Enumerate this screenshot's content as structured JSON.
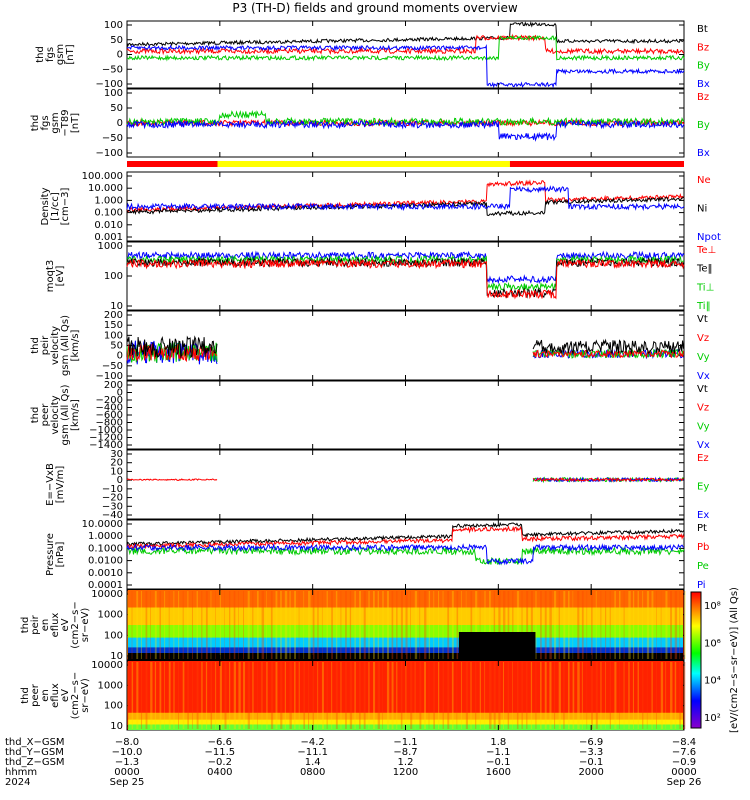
{
  "title": "P3 (TH-D) fields and ground moments overview",
  "colors": {
    "black": "#000000",
    "red": "#ff0000",
    "green": "#00cc00",
    "blue": "#0000ff",
    "yellow": "#ffff00"
  },
  "chart_data": {
    "type": "line",
    "x_range_hours": [
      0,
      24
    ],
    "panels": [
      {
        "id": "fgs",
        "ylabel": [
          "thd",
          "fgs",
          "gsm",
          "[nT]"
        ],
        "yrange": [
          -100,
          100
        ],
        "ticks": [
          "100",
          "50",
          "0",
          "−50",
          "−100"
        ],
        "legend": [
          {
            "name": "Bt",
            "color": "black"
          },
          {
            "name": "Bz",
            "color": "red"
          },
          {
            "name": "By",
            "color": "green"
          },
          {
            "name": "Bx",
            "color": "blue"
          }
        ]
      },
      {
        "id": "fgs_t89",
        "ylabel": [
          "thd",
          "fgs",
          "gsm",
          "−T89",
          "[nT]"
        ],
        "yrange": [
          -130,
          100
        ],
        "ticks": [
          "100",
          "50",
          "0",
          "−50",
          "−100"
        ],
        "legend": [
          {
            "name": "Bz",
            "color": "red"
          },
          {
            "name": "By",
            "color": "green"
          },
          {
            "name": "Bx",
            "color": "blue"
          }
        ]
      },
      {
        "id": "density",
        "ylabel": [
          "Density",
          "[1/cc]",
          "[cm−3]"
        ],
        "log": true,
        "ticks": [
          "100.000",
          "10.000",
          "1.000",
          "0.100",
          "0.010",
          "0.001"
        ],
        "legend": [
          {
            "name": "Ne",
            "color": "red"
          },
          {
            "name": "Ni",
            "color": "black"
          },
          {
            "name": "Npot",
            "color": "blue"
          }
        ]
      },
      {
        "id": "temp",
        "ylabel": [
          "moqt3",
          "[eV]"
        ],
        "log": true,
        "ticks": [
          "1000",
          "100",
          "10"
        ],
        "legend": [
          {
            "name": "Te⊥",
            "color": "red"
          },
          {
            "name": "Te‖",
            "color": "black"
          },
          {
            "name": "Ti⊥",
            "color": "green"
          },
          {
            "name": "Ti‖",
            "color": "green"
          }
        ]
      },
      {
        "id": "peir_vel",
        "ylabel": [
          "thd",
          "peir",
          "velocity",
          "gsm (All Qs)",
          "[km/s]"
        ],
        "yrange": [
          -130,
          200
        ],
        "ticks": [
          "200",
          "150",
          "100",
          "50",
          "0",
          "−50",
          "−100"
        ],
        "legend": [
          {
            "name": "Vt",
            "color": "black"
          },
          {
            "name": "Vz",
            "color": "red"
          },
          {
            "name": "Vy",
            "color": "green"
          },
          {
            "name": "Vx",
            "color": "blue"
          }
        ]
      },
      {
        "id": "peer_vel",
        "ylabel": [
          "thd",
          "peer",
          "velocity",
          "gsm (All Qs)",
          "[km/s]"
        ],
        "yrange": [
          -1400,
          200
        ],
        "ticks": [
          "200",
          "0",
          "−200",
          "−400",
          "−600",
          "−800",
          "−1000",
          "−1200",
          "−1400"
        ],
        "legend": [
          {
            "name": "Vt",
            "color": "black"
          },
          {
            "name": "Vz",
            "color": "red"
          },
          {
            "name": "Vy",
            "color": "green"
          },
          {
            "name": "Vx",
            "color": "blue"
          }
        ]
      },
      {
        "id": "efield",
        "ylabel": [
          "E=−VxB",
          "[mV/m]"
        ],
        "yrange": [
          -40,
          30
        ],
        "ticks": [
          "30",
          "20",
          "10",
          "0",
          "−10",
          "−20",
          "−30",
          "−40"
        ],
        "legend": [
          {
            "name": "Ez",
            "color": "red"
          },
          {
            "name": "Ey",
            "color": "green"
          },
          {
            "name": "Ex",
            "color": "blue"
          }
        ]
      },
      {
        "id": "pressure",
        "ylabel": [
          "Pressure",
          "[nPa]"
        ],
        "log": true,
        "ticks": [
          "10.0000",
          "1.0000",
          "0.1000",
          "0.0100",
          "0.0010",
          "0.0001"
        ],
        "legend": [
          {
            "name": "Pt",
            "color": "black"
          },
          {
            "name": "Pb",
            "color": "red"
          },
          {
            "name": "Pe",
            "color": "green"
          },
          {
            "name": "Pi",
            "color": "blue"
          }
        ]
      },
      {
        "id": "peir_flux",
        "type": "heatmap",
        "ylabel": [
          "thd",
          "peir",
          "en",
          "eflux",
          "eV",
          "(cm2−s−",
          "sr−eV)"
        ],
        "ticks": [
          "10000",
          "1000",
          "100",
          "10"
        ]
      },
      {
        "id": "peer_flux",
        "type": "heatmap",
        "ylabel": [
          "thd",
          "peer",
          "en",
          "eflux",
          "eV",
          "(cm2−s−",
          "sr−eV)"
        ],
        "ticks": [
          "10000",
          "1000",
          "100",
          "10"
        ]
      }
    ],
    "colorbar": {
      "label": "[eV/(cm2−s−sr−eV)] (All Qs)",
      "ticks": [
        "10⁸",
        "10⁶",
        "10⁴",
        "10²"
      ]
    },
    "x_axis": {
      "rows": [
        {
          "label": "thd_X−GSM",
          "values": [
            "−8.0",
            "−6.6",
            "−4.2",
            "−1.1",
            "1.8",
            "−6.9",
            "−8.4"
          ]
        },
        {
          "label": "thd_Y−GSM",
          "values": [
            "−10.0",
            "−11.5",
            "−11.1",
            "−8.7",
            "−1.1",
            "−3.3",
            "−7.6"
          ]
        },
        {
          "label": "thd_Z−GSM",
          "values": [
            "−1.3",
            "−0.2",
            "1.4",
            "1.2",
            "−0.1",
            "−0.1",
            "−0.9"
          ]
        },
        {
          "label": "hhmm",
          "values": [
            "0000",
            "0400",
            "0800",
            "1200",
            "1600",
            "2000",
            "0000"
          ]
        },
        {
          "label": "2024",
          "values": [
            "Sep 25",
            "",
            "",
            "",
            "",
            "",
            "Sep 26"
          ]
        }
      ],
      "tick_hours": [
        0,
        4,
        8,
        12,
        16,
        20,
        24
      ],
      "position_ticks": {
        "1": "−6.6",
        "2": "",
        "3": "",
        "4": "",
        "5": ""
      }
    },
    "mode_bar": [
      {
        "start_h": 0,
        "end_h": 3.9,
        "color": "red"
      },
      {
        "start_h": 3.9,
        "end_h": 16.5,
        "color": "yellow"
      },
      {
        "start_h": 16.5,
        "end_h": 24,
        "color": "red"
      }
    ]
  }
}
